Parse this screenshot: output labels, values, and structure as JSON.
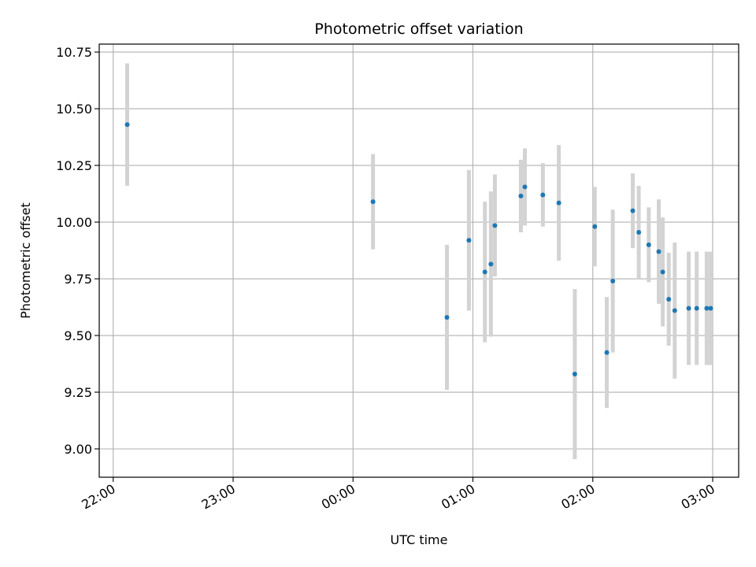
{
  "chart_data": {
    "type": "scatter",
    "title": "Photometric offset variation",
    "xlabel": "UTC time",
    "ylabel": "Photometric offset",
    "x_unit": "UTC time (HH:MM)",
    "xlim": [
      "21:53",
      "03:13"
    ],
    "ylim": [
      8.875,
      10.785
    ],
    "xticks": [
      "22:00",
      "23:00",
      "00:00",
      "01:00",
      "02:00",
      "03:00"
    ],
    "yticks": [
      9.0,
      9.25,
      9.5,
      9.75,
      10.0,
      10.25,
      10.5,
      10.75
    ],
    "ytick_labels": [
      "9.00",
      "9.25",
      "9.50",
      "9.75",
      "10.00",
      "10.25",
      "10.50",
      "10.75"
    ],
    "grid": true,
    "marker_color": "#1f77b4",
    "errorbar_color": "#d3d3d3",
    "points": [
      {
        "x": "22:07",
        "y": 10.43,
        "err": 0.27
      },
      {
        "x": "00:10",
        "y": 10.09,
        "err": 0.21
      },
      {
        "x": "00:47",
        "y": 9.58,
        "err": 0.32
      },
      {
        "x": "00:58",
        "y": 9.92,
        "err": 0.31
      },
      {
        "x": "01:06",
        "y": 9.78,
        "err": 0.31
      },
      {
        "x": "01:09",
        "y": 9.815,
        "err": 0.32
      },
      {
        "x": "01:11",
        "y": 9.985,
        "err": 0.225
      },
      {
        "x": "01:24",
        "y": 10.115,
        "err": 0.16
      },
      {
        "x": "01:26",
        "y": 10.155,
        "err": 0.17
      },
      {
        "x": "01:35",
        "y": 10.12,
        "err": 0.14
      },
      {
        "x": "01:43",
        "y": 10.085,
        "err": 0.255
      },
      {
        "x": "01:51",
        "y": 9.33,
        "err": 0.375
      },
      {
        "x": "02:01",
        "y": 9.98,
        "err": 0.175
      },
      {
        "x": "02:07",
        "y": 9.425,
        "err": 0.245
      },
      {
        "x": "02:10",
        "y": 9.74,
        "err": 0.315
      },
      {
        "x": "02:20",
        "y": 10.05,
        "err": 0.165
      },
      {
        "x": "02:23",
        "y": 9.955,
        "err": 0.205
      },
      {
        "x": "02:28",
        "y": 9.9,
        "err": 0.165
      },
      {
        "x": "02:33",
        "y": 9.87,
        "err": 0.23
      },
      {
        "x": "02:35",
        "y": 9.78,
        "err": 0.24
      },
      {
        "x": "02:38",
        "y": 9.66,
        "err": 0.205
      },
      {
        "x": "02:41",
        "y": 9.61,
        "err": 0.3
      },
      {
        "x": "02:48",
        "y": 9.62,
        "err": 0.25
      },
      {
        "x": "02:52",
        "y": 9.62,
        "err": 0.25
      },
      {
        "x": "02:57",
        "y": 9.62,
        "err": 0.25
      },
      {
        "x": "02:59",
        "y": 9.62,
        "err": 0.25
      }
    ]
  }
}
